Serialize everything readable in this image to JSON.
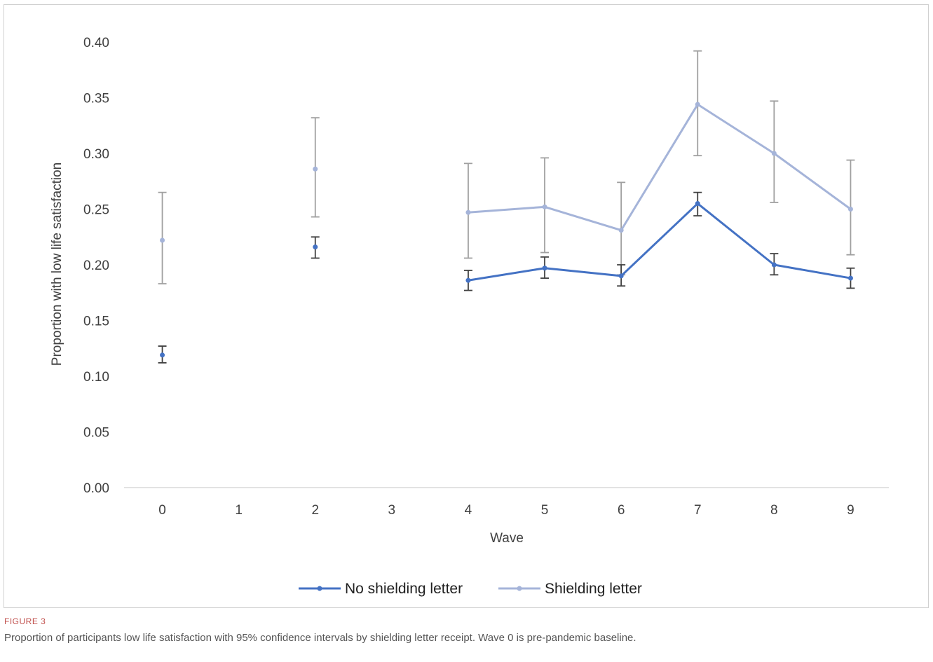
{
  "figure_label": "FIGURE 3",
  "caption": "Proportion of participants low life satisfaction with 95% confidence intervals by shielding letter receipt. Wave 0 is pre-pandemic baseline.",
  "chart_data": {
    "type": "line",
    "title": "",
    "xlabel": "Wave",
    "ylabel": "Proportion with low life satisfaction",
    "categories": [
      "0",
      "1",
      "2",
      "3",
      "4",
      "5",
      "6",
      "7",
      "8",
      "9"
    ],
    "ylim": [
      0,
      0.4
    ],
    "yticks": [
      "0.00",
      "0.05",
      "0.10",
      "0.15",
      "0.20",
      "0.25",
      "0.30",
      "0.35",
      "0.40"
    ],
    "grid": false,
    "legend_position": "bottom",
    "series": [
      {
        "name": "No shielding letter",
        "color": "#4472c4",
        "error_color": "#404040",
        "points": [
          {
            "x": 0,
            "y": 0.119,
            "lo": 0.112,
            "hi": 0.127,
            "connected": false
          },
          {
            "x": 2,
            "y": 0.216,
            "lo": 0.206,
            "hi": 0.225,
            "connected": false
          },
          {
            "x": 4,
            "y": 0.186,
            "lo": 0.177,
            "hi": 0.195,
            "connected": true
          },
          {
            "x": 5,
            "y": 0.197,
            "lo": 0.188,
            "hi": 0.207,
            "connected": true
          },
          {
            "x": 6,
            "y": 0.19,
            "lo": 0.181,
            "hi": 0.2,
            "connected": true
          },
          {
            "x": 7,
            "y": 0.255,
            "lo": 0.244,
            "hi": 0.265,
            "connected": true
          },
          {
            "x": 8,
            "y": 0.2,
            "lo": 0.191,
            "hi": 0.21,
            "connected": true
          },
          {
            "x": 9,
            "y": 0.188,
            "lo": 0.179,
            "hi": 0.197,
            "connected": true
          }
        ]
      },
      {
        "name": "Shielding letter",
        "color": "#a5b4d9",
        "error_color": "#a0a0a0",
        "points": [
          {
            "x": 0,
            "y": 0.222,
            "lo": 0.183,
            "hi": 0.265,
            "connected": false
          },
          {
            "x": 2,
            "y": 0.286,
            "lo": 0.243,
            "hi": 0.332,
            "connected": false
          },
          {
            "x": 4,
            "y": 0.247,
            "lo": 0.206,
            "hi": 0.291,
            "connected": true
          },
          {
            "x": 5,
            "y": 0.252,
            "lo": 0.211,
            "hi": 0.296,
            "connected": true
          },
          {
            "x": 6,
            "y": 0.231,
            "lo": 0.191,
            "hi": 0.274,
            "connected": true
          },
          {
            "x": 7,
            "y": 0.344,
            "lo": 0.298,
            "hi": 0.392,
            "connected": true
          },
          {
            "x": 8,
            "y": 0.3,
            "lo": 0.256,
            "hi": 0.347,
            "connected": true
          },
          {
            "x": 9,
            "y": 0.25,
            "lo": 0.209,
            "hi": 0.294,
            "connected": true
          }
        ]
      }
    ]
  }
}
